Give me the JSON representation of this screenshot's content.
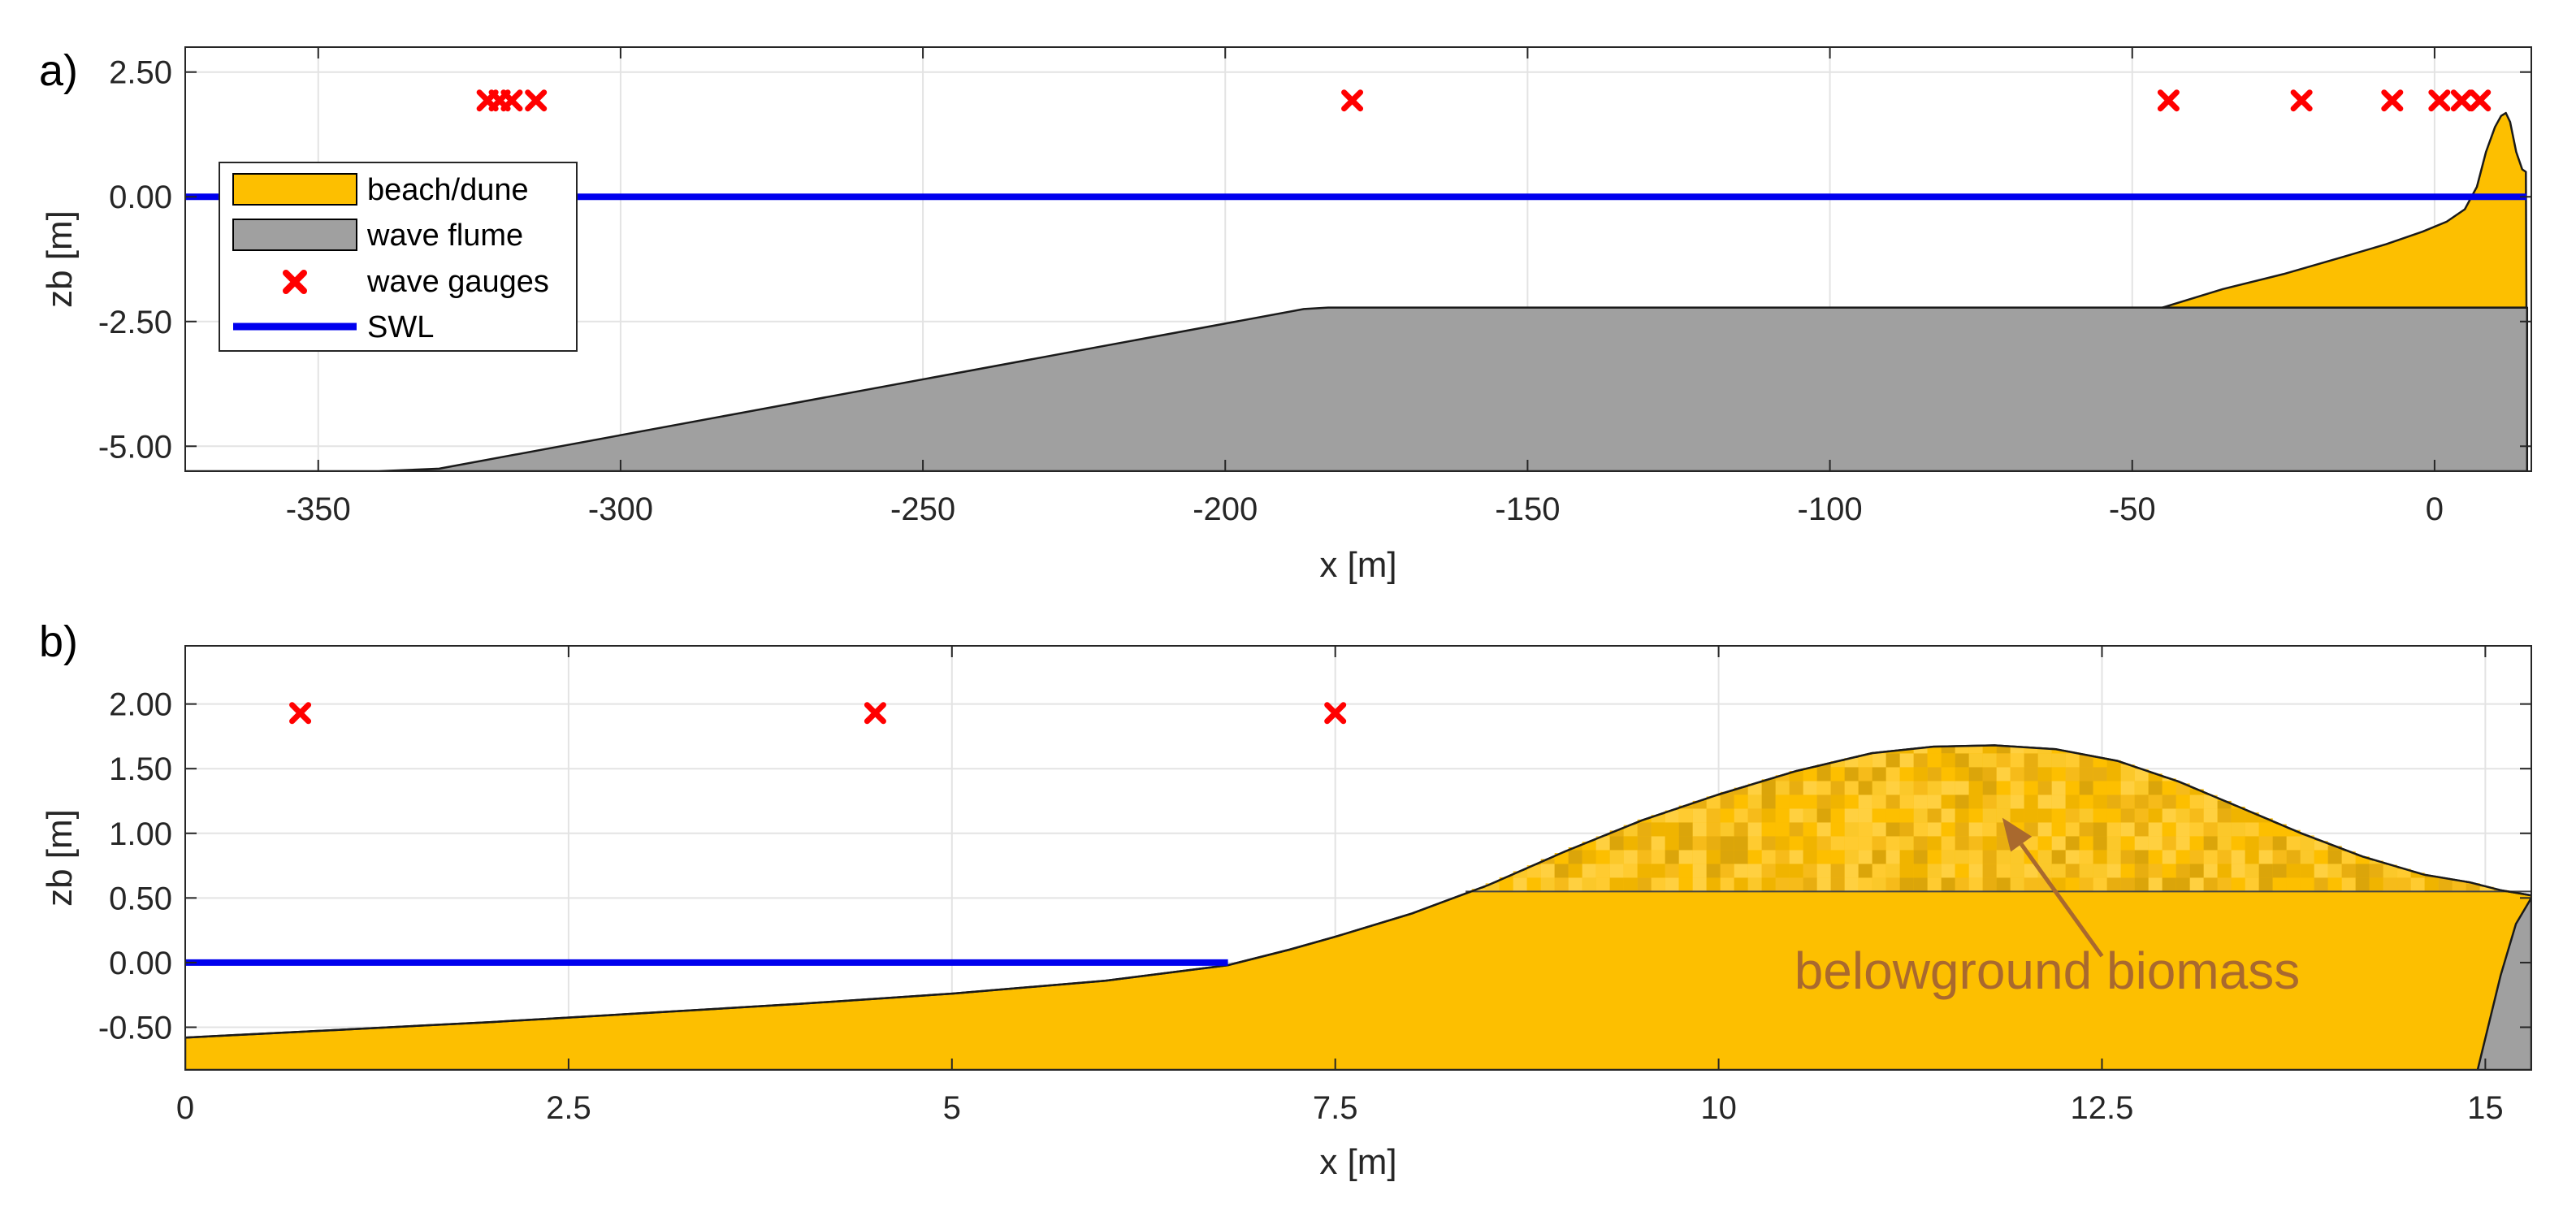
{
  "chart_data": [
    {
      "panel_label": "a)",
      "type": "area",
      "xlabel": "x [m]",
      "ylabel": "zb [m]",
      "xlim": [
        -372,
        16
      ],
      "ylim": [
        -5.5,
        3.0
      ],
      "xticks": [
        -350,
        -300,
        -250,
        -200,
        -150,
        -100,
        -50,
        0
      ],
      "xtick_labels": [
        "-350",
        "-300",
        "-250",
        "-200",
        "-150",
        "-100",
        "-50",
        "0"
      ],
      "yticks": [
        2.5,
        0,
        -2.5,
        -5
      ],
      "ytick_labels": [
        "2.50",
        "0.00",
        "-2.50",
        "-5.00"
      ],
      "grid": true,
      "legend_position": "top-left",
      "legend": [
        {
          "label": "beach/dune",
          "kind": "patch",
          "color": "#FDBF00"
        },
        {
          "label": "wave flume",
          "kind": "patch",
          "color": "#A0A0A0"
        },
        {
          "label": "wave gauges",
          "kind": "marker",
          "color": "#FF0000"
        },
        {
          "label": "SWL",
          "kind": "line",
          "color": "#0000EE"
        }
      ],
      "series": [
        {
          "name": "wave flume",
          "color": "#A0A0A0",
          "x": [
            -372,
            -340,
            -330,
            -187,
            -183,
            15.3,
            15.3
          ],
          "y": [
            -5.5,
            -5.5,
            -5.45,
            -2.25,
            -2.22,
            -2.22,
            -5.5
          ]
        },
        {
          "name": "beach/dune",
          "color": "#FDBF00",
          "x": [
            -45,
            -35,
            -25,
            -15,
            -8,
            -2,
            2,
            5,
            7,
            8.5,
            10,
            11,
            11.8,
            12.5,
            13.5,
            14.5,
            15.1,
            15.2
          ],
          "y": [
            -2.22,
            -1.85,
            -1.55,
            -1.2,
            -0.95,
            -0.7,
            -0.5,
            -0.25,
            0.2,
            0.9,
            1.4,
            1.62,
            1.68,
            1.5,
            0.9,
            0.55,
            0.5,
            -2.22
          ]
        },
        {
          "name": "SWL",
          "color": "#0000EE",
          "x": [
            -372,
            15.2
          ],
          "y": [
            0,
            0
          ]
        },
        {
          "name": "wave gauges",
          "color": "#FF0000",
          "x": [
            -322,
            -320,
            -318,
            -314,
            -179,
            -44,
            -22,
            -7,
            0.8,
            4.5,
            7.5
          ],
          "y": [
            1.93,
            1.93,
            1.93,
            1.93,
            1.93,
            1.93,
            1.93,
            1.93,
            1.93,
            1.93,
            1.93
          ]
        }
      ]
    },
    {
      "panel_label": "b)",
      "type": "area",
      "xlabel": "x [m]",
      "ylabel": "zb [m]",
      "xlim": [
        0,
        15.3
      ],
      "ylim": [
        -0.83,
        2.45
      ],
      "xticks": [
        0,
        2.5,
        5,
        7.5,
        10,
        12.5,
        15
      ],
      "xtick_labels": [
        "0",
        "2.5",
        "5",
        "7.5",
        "10",
        "12.5",
        "15"
      ],
      "yticks": [
        2.0,
        1.5,
        1.0,
        0.5,
        0.0,
        -0.5
      ],
      "ytick_labels": [
        "2.00",
        "1.50",
        "1.00",
        "0.50",
        "0.00",
        "-0.50"
      ],
      "grid": true,
      "annotation": {
        "text": "belowground biomass",
        "color": "#A9692E",
        "tail": [
          12.5,
          0.05
        ],
        "head": [
          11.85,
          1.12
        ]
      },
      "biomass_base": 0.55,
      "series": [
        {
          "name": "beach/dune",
          "color": "#FDBF00",
          "x": [
            0,
            1,
            2,
            3,
            4,
            5,
            6,
            6.8,
            7.2,
            7.5,
            8,
            8.5,
            9,
            9.5,
            10,
            10.5,
            11,
            11.4,
            11.8,
            12.2,
            12.6,
            13,
            13.4,
            13.8,
            14.2,
            14.6,
            14.9,
            15.1,
            15.3,
            15.3,
            0
          ],
          "y": [
            -0.58,
            -0.52,
            -0.46,
            -0.39,
            -0.32,
            -0.24,
            -0.14,
            -0.02,
            0.1,
            0.2,
            0.38,
            0.6,
            0.86,
            1.1,
            1.3,
            1.48,
            1.62,
            1.67,
            1.68,
            1.65,
            1.56,
            1.4,
            1.2,
            1.0,
            0.82,
            0.68,
            0.62,
            0.56,
            0.52,
            -0.83,
            -0.83
          ]
        },
        {
          "name": "wave flume",
          "color": "#A0A0A0",
          "x": [
            14.95,
            15.1,
            15.2,
            15.3,
            15.3
          ],
          "y": [
            -0.83,
            -0.1,
            0.3,
            0.5,
            -0.83
          ]
        },
        {
          "name": "SWL",
          "color": "#0000EE",
          "x": [
            0,
            6.8
          ],
          "y": [
            0,
            0
          ]
        },
        {
          "name": "wave gauges",
          "color": "#FF0000",
          "x": [
            0.75,
            4.5,
            7.5
          ],
          "y": [
            1.93,
            1.93,
            1.93
          ]
        }
      ]
    }
  ]
}
